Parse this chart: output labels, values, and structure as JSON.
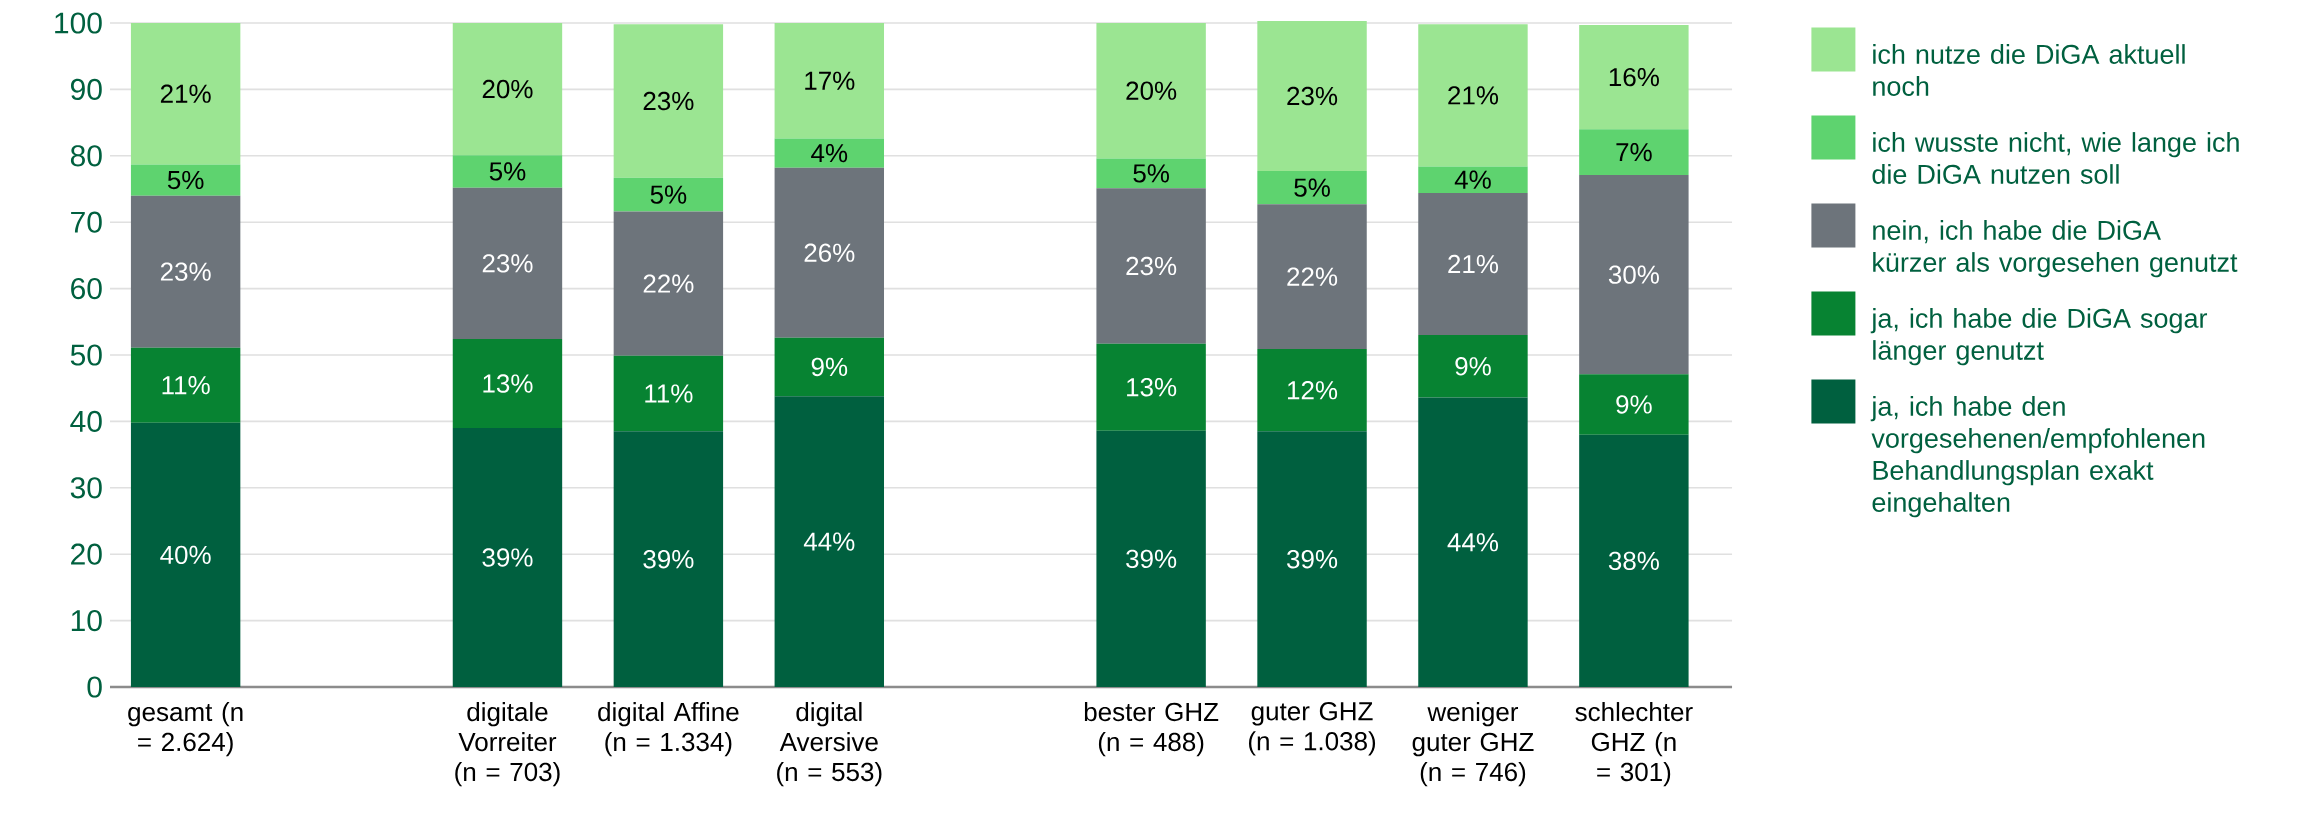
{
  "chart_data": {
    "type": "bar",
    "stacked": true,
    "categories": [
      "gesamt (n = 2.624)",
      null,
      "digitale Vorreiter (n = 703)",
      "digital Affine (n = 1.334)",
      "digital Aversive (n = 553)",
      null,
      "bester GHZ (n = 488)",
      "guter GHZ (n = 1.038)",
      "weniger guter GHZ (n = 746)",
      "schlechter GHZ (n = 301)"
    ],
    "series": [
      {
        "name": "ja, ich habe den vorgesehenen/empfohlenen Behandlungsplan exakt eingehalten",
        "color": "#00603f",
        "values": [
          39.8,
          null,
          39.0,
          38.5,
          43.8,
          null,
          38.6,
          38.5,
          43.6,
          38.0
        ],
        "value_labels": [
          "40%",
          null,
          "39%",
          "39%",
          "44%",
          null,
          "39%",
          "39%",
          "44%",
          "38%"
        ]
      },
      {
        "name": "ja, ich habe die DiGA sogar länger genutzt",
        "color": "#078332",
        "values": [
          11.3,
          null,
          13.4,
          11.4,
          8.8,
          null,
          13.1,
          12.4,
          9.4,
          9.1
        ],
        "value_labels": [
          "11%",
          null,
          "13%",
          "11%",
          "9%",
          null,
          "13%",
          "12%",
          "9%",
          "9%"
        ]
      },
      {
        "name": "nein, ich habe die DiGA kürzer als vorgesehen genutzt",
        "color": "#6d747b",
        "values": [
          22.9,
          null,
          22.8,
          21.7,
          25.6,
          null,
          23.4,
          21.8,
          21.4,
          30.0
        ],
        "value_labels": [
          "23%",
          null,
          "23%",
          "22%",
          "26%",
          null,
          "23%",
          "22%",
          "21%",
          "30%"
        ]
      },
      {
        "name": "ich wusste nicht, wie lange ich die DiGA nutzen soll",
        "color": "#5ed36f",
        "values": [
          4.7,
          null,
          4.9,
          5.1,
          4.4,
          null,
          4.5,
          5.0,
          4.0,
          6.9
        ],
        "value_labels": [
          "5%",
          null,
          "5%",
          "5%",
          "4%",
          null,
          "5%",
          "5%",
          "4%",
          "7%"
        ]
      },
      {
        "name": "ich nutze die DiGA aktuell noch",
        "color": "#9be592",
        "values": [
          21.3,
          null,
          19.9,
          23.1,
          17.4,
          null,
          20.4,
          22.6,
          21.4,
          15.7
        ],
        "value_labels": [
          "21%",
          null,
          "20%",
          "23%",
          "17%",
          null,
          "20%",
          "23%",
          "21%",
          "16%"
        ]
      }
    ],
    "ylim": [
      0,
      100
    ],
    "yticks": [
      0,
      10,
      20,
      30,
      40,
      50,
      60,
      70,
      80,
      90,
      100
    ],
    "grid": "y",
    "legend": "right"
  }
}
